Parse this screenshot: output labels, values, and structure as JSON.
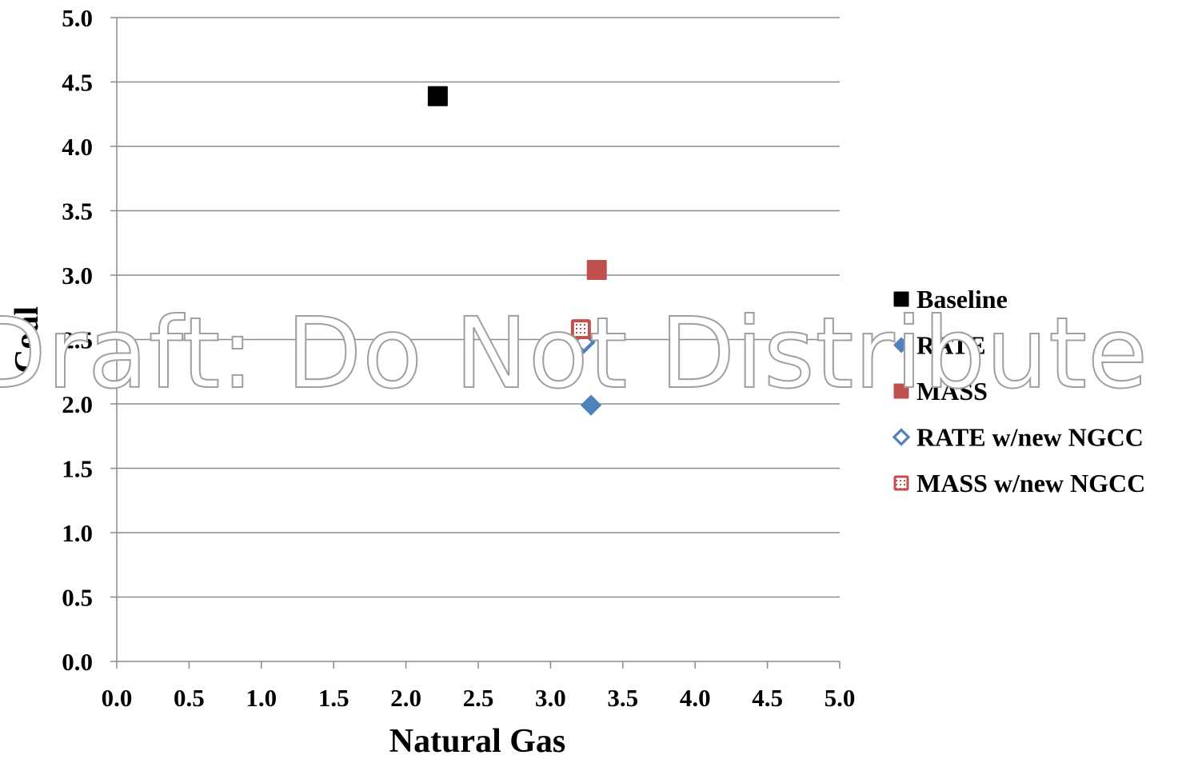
{
  "watermark": "Draft: Do Not Distribute",
  "chart_data": {
    "type": "scatter",
    "xlabel": "Natural Gas",
    "ylabel": "Coal",
    "xlim": [
      0,
      5
    ],
    "ylim": [
      0,
      5
    ],
    "xticks": [
      "0.0",
      "0.5",
      "1.0",
      "1.5",
      "2.0",
      "2.5",
      "3.0",
      "3.5",
      "4.0",
      "4.5",
      "5.0"
    ],
    "yticks": [
      "0.0",
      "0.5",
      "1.0",
      "1.5",
      "2.0",
      "2.5",
      "3.0",
      "3.5",
      "4.0",
      "4.5",
      "5.0"
    ],
    "grid": "horizontal",
    "legend_position": "right",
    "series": [
      {
        "name": "Baseline",
        "marker": "square",
        "fill": "solid",
        "color": "#000000",
        "points": [
          [
            2.22,
            4.39
          ]
        ]
      },
      {
        "name": "RATE",
        "marker": "diamond",
        "fill": "solid",
        "color": "#4f81bd",
        "points": [
          [
            3.28,
            1.99
          ]
        ]
      },
      {
        "name": "MASS",
        "marker": "square",
        "fill": "solid",
        "color": "#c0504d",
        "points": [
          [
            3.32,
            3.04
          ]
        ]
      },
      {
        "name": "RATE w/new NGCC",
        "marker": "diamond",
        "fill": "hollow",
        "color": "#4f81bd",
        "points": [
          [
            3.23,
            2.48
          ]
        ]
      },
      {
        "name": "MASS w/new NGCC",
        "marker": "square",
        "fill": "pattern",
        "color": "#c0504d",
        "points": [
          [
            3.21,
            2.58
          ]
        ]
      }
    ]
  }
}
